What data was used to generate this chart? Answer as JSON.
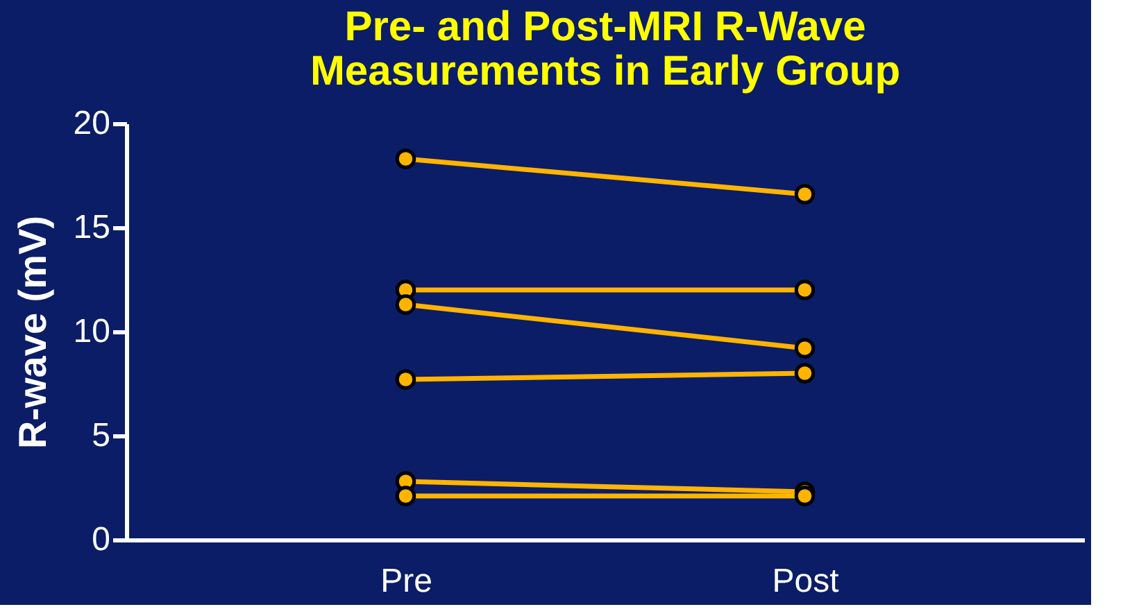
{
  "chart_data": {
    "type": "line",
    "title": [
      "Pre- and Post-MRI R-Wave",
      "Measurements in Early Group"
    ],
    "ylabel": "R-wave (mV)",
    "categories": [
      "Pre",
      "Post"
    ],
    "series": [
      {
        "color": "#ffb400",
        "values": [
          18.3,
          16.6
        ]
      },
      {
        "color": "#ffb400",
        "values": [
          12.0,
          12.0
        ]
      },
      {
        "color": "#ffb400",
        "values": [
          11.3,
          9.2
        ]
      },
      {
        "color": "#ffb400",
        "values": [
          7.7,
          8.0
        ]
      },
      {
        "color": "#ffb400",
        "values": [
          2.8,
          2.3
        ]
      },
      {
        "color": "#ffb400",
        "values": [
          2.1,
          2.1
        ]
      }
    ],
    "ylim": [
      0,
      20
    ],
    "yticks": [
      0,
      5,
      10,
      15,
      20
    ],
    "grid": false,
    "legend": false,
    "marker": "circle",
    "line_style": "solid"
  }
}
